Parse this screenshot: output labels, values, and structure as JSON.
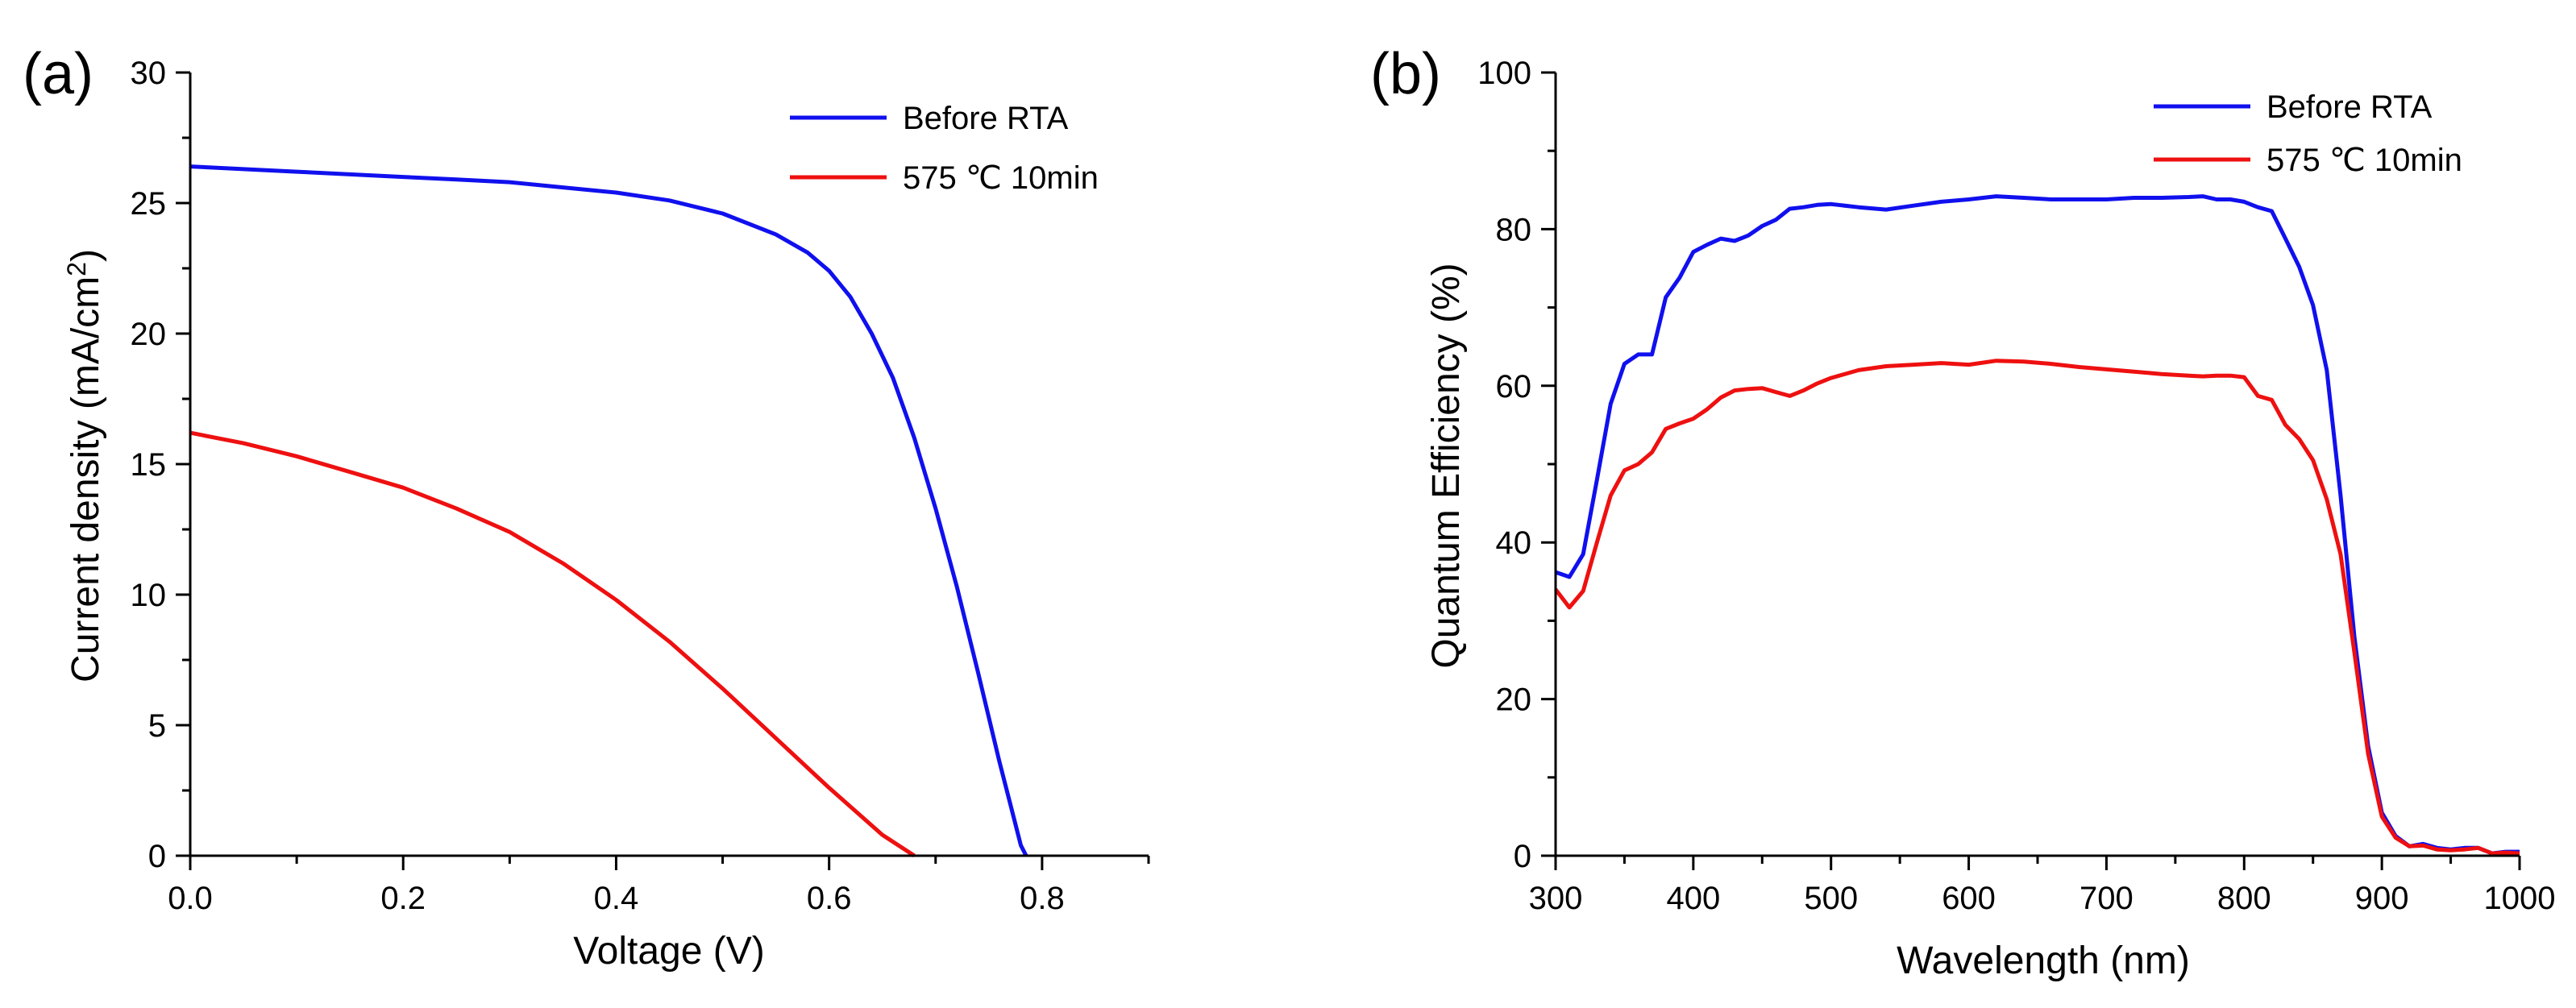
{
  "chart_data": [
    {
      "type": "line",
      "panel_label": "(a)",
      "xlabel": "Voltage (V)",
      "ylabel": "Current density (mA/cm",
      "ylabel_superscript": "2",
      "ylabel_close": ")",
      "xlim": [
        0,
        0.9
      ],
      "ylim": [
        0,
        30
      ],
      "xticks": [
        0.0,
        0.2,
        0.4,
        0.6,
        0.8
      ],
      "xtick_labels": [
        "0.0",
        "0.2",
        "0.4",
        "0.6",
        "0.8"
      ],
      "yticks": [
        0,
        5,
        10,
        15,
        20,
        25,
        30
      ],
      "ytick_labels": [
        "0",
        "5",
        "10",
        "15",
        "20",
        "25",
        "30"
      ],
      "legend_position": "top-right",
      "series": [
        {
          "name": "Before RTA",
          "color": "#1010ee",
          "x": [
            0.0,
            0.05,
            0.1,
            0.15,
            0.2,
            0.25,
            0.3,
            0.35,
            0.4,
            0.45,
            0.5,
            0.55,
            0.58,
            0.6,
            0.62,
            0.64,
            0.66,
            0.68,
            0.7,
            0.72,
            0.74,
            0.76,
            0.77,
            0.78,
            0.785
          ],
          "y": [
            26.4,
            26.3,
            26.2,
            26.1,
            26.0,
            25.9,
            25.8,
            25.6,
            25.4,
            25.1,
            24.6,
            23.8,
            23.1,
            22.4,
            21.4,
            20.0,
            18.3,
            16.0,
            13.3,
            10.3,
            7.0,
            3.6,
            2.0,
            0.4,
            0.0
          ]
        },
        {
          "name": "575 ℃ 10min",
          "color": "#ee1010",
          "x": [
            0.0,
            0.05,
            0.1,
            0.15,
            0.2,
            0.25,
            0.3,
            0.35,
            0.4,
            0.45,
            0.5,
            0.55,
            0.6,
            0.65,
            0.68
          ],
          "y": [
            16.2,
            15.8,
            15.3,
            14.7,
            14.1,
            13.3,
            12.4,
            11.2,
            9.8,
            8.2,
            6.4,
            4.5,
            2.6,
            0.8,
            0.0
          ]
        }
      ]
    },
    {
      "type": "line",
      "panel_label": "(b)",
      "xlabel": "Wavelength (nm)",
      "ylabel": "Quantum Efficiency (%)",
      "xlim": [
        300,
        1000
      ],
      "ylim": [
        0,
        100
      ],
      "xticks": [
        300,
        400,
        500,
        600,
        700,
        800,
        900,
        1000
      ],
      "xtick_labels": [
        "300",
        "400",
        "500",
        "600",
        "700",
        "800",
        "900",
        "1000"
      ],
      "yticks": [
        0,
        20,
        40,
        60,
        80,
        100
      ],
      "ytick_labels": [
        "0",
        "20",
        "40",
        "60",
        "80",
        "100"
      ],
      "legend_position": "top-right",
      "series": [
        {
          "name": "Before RTA",
          "color": "#1010ee",
          "x": [
            300,
            310,
            320,
            330,
            340,
            350,
            360,
            370,
            380,
            390,
            400,
            410,
            420,
            430,
            440,
            450,
            460,
            470,
            480,
            490,
            500,
            520,
            540,
            560,
            580,
            600,
            620,
            640,
            660,
            680,
            700,
            720,
            740,
            760,
            770,
            780,
            790,
            800,
            810,
            820,
            830,
            840,
            850,
            860,
            870,
            880,
            890,
            900,
            910,
            920,
            930,
            940,
            950,
            960,
            970,
            980,
            990,
            1000
          ],
          "y": [
            36.2,
            35.6,
            38.5,
            48.0,
            57.7,
            62.8,
            64.0,
            64.0,
            71.3,
            73.8,
            77.1,
            78.0,
            78.8,
            78.5,
            79.2,
            80.4,
            81.2,
            82.6,
            82.8,
            83.1,
            83.2,
            82.8,
            82.5,
            83.0,
            83.5,
            83.8,
            84.2,
            84.0,
            83.8,
            83.8,
            83.8,
            84.0,
            84.0,
            84.1,
            84.2,
            83.8,
            83.8,
            83.5,
            82.8,
            82.3,
            78.8,
            75.2,
            70.3,
            62.0,
            46.0,
            28.0,
            14.0,
            5.5,
            2.5,
            1.2,
            1.5,
            1.0,
            0.8,
            1.0,
            1.0,
            0.3,
            0.5,
            0.5
          ]
        },
        {
          "name": "575 ℃ 10min",
          "color": "#ee1010",
          "x": [
            300,
            310,
            320,
            330,
            340,
            350,
            360,
            370,
            380,
            390,
            400,
            410,
            420,
            430,
            440,
            450,
            460,
            470,
            480,
            490,
            500,
            520,
            540,
            560,
            580,
            600,
            620,
            640,
            660,
            680,
            700,
            720,
            740,
            760,
            770,
            780,
            790,
            800,
            810,
            820,
            830,
            840,
            850,
            860,
            870,
            880,
            890,
            900,
            910,
            920,
            930,
            940,
            950,
            960,
            970,
            980,
            990,
            1000
          ],
          "y": [
            34.0,
            31.7,
            33.8,
            40.0,
            46.0,
            49.2,
            50.0,
            51.5,
            54.5,
            55.2,
            55.8,
            57.0,
            58.5,
            59.4,
            59.6,
            59.7,
            59.2,
            58.7,
            59.4,
            60.3,
            61.0,
            62.0,
            62.5,
            62.7,
            62.9,
            62.7,
            63.2,
            63.1,
            62.8,
            62.4,
            62.1,
            61.8,
            61.5,
            61.3,
            61.2,
            61.3,
            61.3,
            61.1,
            58.7,
            58.2,
            55.0,
            53.2,
            50.5,
            45.5,
            38.5,
            26.0,
            13.0,
            5.0,
            2.3,
            1.2,
            1.3,
            0.8,
            0.7,
            0.8,
            1.0,
            0.3,
            0.4,
            0.3
          ]
        }
      ]
    }
  ]
}
